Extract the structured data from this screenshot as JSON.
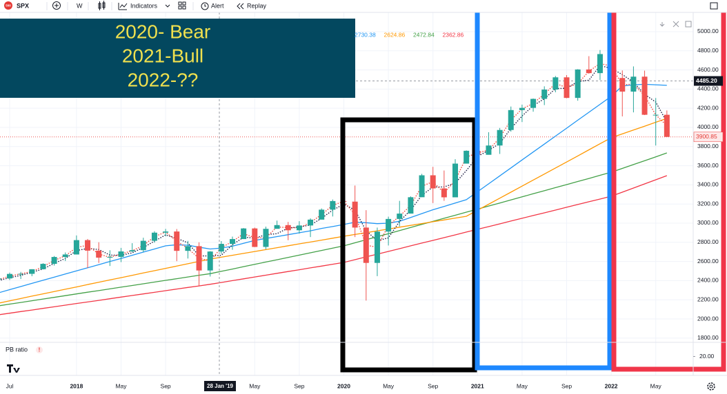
{
  "toolbar": {
    "logo": "500",
    "symbol": "SPX",
    "interval": "W",
    "indicators": "Indicators",
    "alert": "Alert",
    "replay": "Replay"
  },
  "chart_data": {
    "type": "candlestick",
    "annotation": [
      "2020- Bear",
      "2021-Bull",
      "2022-??"
    ],
    "categories": [
      null,
      "Jul",
      null,
      null,
      null,
      null,
      null,
      "2018",
      null,
      null,
      null,
      "May",
      null,
      null,
      null,
      "Sep",
      null,
      null,
      null,
      null,
      null,
      null,
      null,
      "May",
      null,
      null,
      null,
      "Sep",
      null,
      null,
      null,
      "2020",
      null,
      null,
      null,
      "May",
      null,
      null,
      null,
      "Sep",
      null,
      null,
      null,
      "2021",
      null,
      null,
      null,
      "May",
      null,
      null,
      null,
      "Sep",
      null,
      null,
      null,
      "2022",
      null,
      null,
      null,
      "May",
      null
    ],
    "open": [
      2412,
      2423,
      2470,
      2471,
      2519,
      2575,
      2647,
      2673,
      2823,
      2713,
      2640,
      2648,
      2705,
      2718,
      2816,
      2901,
      2913,
      2711,
      2760,
      2506,
      2704,
      2784,
      2834,
      2945,
      2752,
      2941,
      2980,
      2926,
      2976,
      3037,
      3141,
      3231,
      3225,
      2954,
      2585,
      2912,
      3044,
      3100,
      3271,
      3500,
      3363,
      3270,
      3622,
      3756,
      3714,
      3811,
      3973,
      4181,
      4204,
      4298,
      4395,
      4523,
      4308,
      4605,
      4567,
      4766,
      4516,
      4374,
      4530,
      4132,
      4132
    ],
    "high": [
      2454,
      2484,
      2491,
      2519,
      2582,
      2657,
      2694,
      2872,
      2835,
      2801,
      2717,
      2742,
      2791,
      2848,
      2916,
      2940,
      2939,
      2815,
      2800,
      2708,
      2813,
      2860,
      2949,
      2954,
      2964,
      3027,
      3013,
      3021,
      3050,
      3154,
      3247,
      3337,
      3393,
      3136,
      2954,
      3068,
      3233,
      3280,
      3515,
      3588,
      3550,
      3668,
      3760,
      3870,
      3950,
      3994,
      4218,
      4238,
      4302,
      4429,
      4537,
      4546,
      4608,
      4744,
      4808,
      4818,
      4595,
      4637,
      4593,
      4307,
      4177
    ],
    "low": [
      2405,
      2407,
      2417,
      2446,
      2520,
      2557,
      2605,
      2682,
      2532,
      2585,
      2553,
      2594,
      2698,
      2698,
      2796,
      2864,
      2603,
      2631,
      2346,
      2443,
      2681,
      2722,
      2848,
      2750,
      2728,
      2952,
      2822,
      2891,
      2855,
      3050,
      3070,
      3214,
      2855,
      2192,
      2447,
      2767,
      2966,
      3115,
      3284,
      3210,
      3233,
      3280,
      3634,
      3694,
      3725,
      3723,
      3956,
      4056,
      4164,
      4233,
      4367,
      4305,
      4279,
      4561,
      4495,
      4222,
      4115,
      4157,
      4129,
      3811,
      3900
    ],
    "close": [
      2423,
      2470,
      2471,
      2519,
      2575,
      2647,
      2673,
      2823,
      2713,
      2640,
      2648,
      2705,
      2718,
      2816,
      2901,
      2913,
      2711,
      2760,
      2506,
      2704,
      2784,
      2834,
      2945,
      2752,
      2941,
      2980,
      2926,
      2976,
      3037,
      3141,
      3231,
      3225,
      2954,
      2585,
      2912,
      3044,
      3100,
      3271,
      3500,
      3363,
      3270,
      3622,
      3756,
      3714,
      3811,
      3973,
      4181,
      4204,
      4298,
      4395,
      4523,
      4308,
      4605,
      4567,
      4766,
      4516,
      4374,
      4530,
      4132,
      4132,
      3901
    ],
    "up_color": "#26a69a",
    "down_color": "#ef5350",
    "series": [
      {
        "color": "#f23645",
        "style": "solid",
        "crosshair_value": 2362.86,
        "values": [
          2043,
          2060,
          2077,
          2093,
          2110,
          2127,
          2144,
          2161,
          2177,
          2194,
          2211,
          2228,
          2245,
          2261,
          2278,
          2295,
          2312,
          2329,
          2345,
          2362,
          2381,
          2400,
          2419,
          2438,
          2457,
          2476,
          2495,
          2514,
          2533,
          2552,
          2571,
          2590,
          2619,
          2648,
          2676,
          2705,
          2734,
          2763,
          2792,
          2820,
          2849,
          2878,
          2907,
          2936,
          2964,
          2993,
          3022,
          3051,
          3080,
          3108,
          3137,
          3166,
          3195,
          3224,
          3252,
          3281,
          3324,
          3367,
          3410,
          3453,
          3496
        ]
      },
      {
        "color": "#43a047",
        "style": "solid",
        "crosshair_value": 2472.84,
        "values": [
          2137,
          2155,
          2172,
          2190,
          2208,
          2225,
          2243,
          2261,
          2279,
          2296,
          2314,
          2332,
          2349,
          2367,
          2385,
          2403,
          2420,
          2438,
          2456,
          2473,
          2497,
          2521,
          2546,
          2570,
          2594,
          2618,
          2642,
          2666,
          2691,
          2715,
          2739,
          2763,
          2795,
          2827,
          2859,
          2891,
          2923,
          2955,
          2987,
          3019,
          3051,
          3083,
          3115,
          3147,
          3179,
          3211,
          3243,
          3275,
          3307,
          3339,
          3371,
          3403,
          3435,
          3467,
          3500,
          3532,
          3572,
          3612,
          3652,
          3693,
          3734
        ]
      },
      {
        "color": "#ff9800",
        "style": "solid",
        "crosshair_value": 2624.86,
        "values": [
          2165,
          2189,
          2213,
          2238,
          2262,
          2286,
          2310,
          2334,
          2359,
          2383,
          2407,
          2431,
          2455,
          2480,
          2504,
          2528,
          2552,
          2576,
          2601,
          2625,
          2645,
          2665,
          2684,
          2704,
          2724,
          2744,
          2764,
          2784,
          2803,
          2823,
          2843,
          2863,
          2882,
          2901,
          2920,
          2939,
          2958,
          2977,
          2996,
          3015,
          3034,
          3053,
          3072,
          3135,
          3198,
          3261,
          3324,
          3387,
          3450,
          3513,
          3576,
          3639,
          3702,
          3766,
          3829,
          3892,
          3932,
          3973,
          4013,
          4054,
          4094
        ]
      },
      {
        "color": "#2196f3",
        "style": "solid",
        "crosshair_value": 2730.38,
        "values": [
          2273,
          2306,
          2338,
          2371,
          2404,
          2436,
          2469,
          2502,
          2534,
          2567,
          2600,
          2632,
          2665,
          2698,
          2730,
          2763,
          2775,
          2770,
          2750,
          2730,
          2740,
          2760,
          2790,
          2820,
          2840,
          2860,
          2880,
          2900,
          2920,
          2945,
          2965,
          2986,
          3010,
          3005,
          2995,
          3000,
          3020,
          3060,
          3100,
          3140,
          3175,
          3210,
          3245,
          3328,
          3411,
          3494,
          3577,
          3660,
          3743,
          3826,
          3909,
          3992,
          4075,
          4158,
          4241,
          4324,
          4432,
          4445,
          4450,
          4445,
          4439
        ]
      },
      {
        "color": "#1a1a40",
        "style": "dotted",
        "values": [
          2400,
          2430,
          2455,
          2487,
          2522,
          2580,
          2632,
          2714,
          2736,
          2725,
          2667,
          2664,
          2690,
          2746,
          2812,
          2877,
          2842,
          2795,
          2659,
          2657,
          2665,
          2774,
          2854,
          2844,
          2879,
          2891,
          2949,
          2961,
          2980,
          3051,
          3136,
          3199,
          3137,
          2921,
          2817,
          2847,
          3019,
          3138,
          3290,
          3378,
          3378,
          3418,
          3549,
          3697,
          3760,
          3833,
          3988,
          4119,
          4228,
          4299,
          4405,
          4409,
          4479,
          4493,
          4646,
          4616,
          4552,
          4473,
          4345,
          4265,
          4055
        ]
      },
      {
        "color": "#f44336",
        "style": "dotted",
        "values": [
          2410,
          2447,
          2471,
          2495,
          2547,
          2611,
          2660,
          2748,
          2768,
          2677,
          2644,
          2677,
          2712,
          2767,
          2859,
          2907,
          2812,
          2736,
          2633,
          2605,
          2744,
          2809,
          2890,
          2849,
          2847,
          2961,
          2953,
          2951,
          3007,
          3089,
          3186,
          3228,
          3090,
          2770,
          2749,
          2978,
          3072,
          3186,
          3386,
          3432,
          3317,
          3446,
          3689,
          3735,
          3763,
          3892,
          4077,
          4193,
          4251,
          4347,
          4459,
          4416,
          4457,
          4586,
          4667,
          4641,
          4445,
          4452,
          4331,
          4132,
          4017
        ]
      }
    ],
    "ylim": [
      1770,
      5201
    ],
    "yticks": [
      {
        "value": 1800,
        "label": "1800.00"
      },
      {
        "value": 2000,
        "label": "2000.00"
      },
      {
        "value": 2200,
        "label": "2200.00"
      },
      {
        "value": 2400,
        "label": "2400.00"
      },
      {
        "value": 2600,
        "label": "2600.00"
      },
      {
        "value": 2800,
        "label": "2800.00"
      },
      {
        "value": 3000,
        "label": "3000.00"
      },
      {
        "value": 3200,
        "label": "3200.00"
      },
      {
        "value": 3400,
        "label": "3400.00"
      },
      {
        "value": 3600,
        "label": "3600.00"
      },
      {
        "value": 3800,
        "label": "3800.00"
      },
      {
        "value": 4000,
        "label": "4000.00"
      },
      {
        "value": 4200,
        "label": "4200.00"
      },
      {
        "value": 4400,
        "label": "4400.00"
      },
      {
        "value": 4600,
        "label": "4600.00"
      },
      {
        "value": 4800,
        "label": "4800.00"
      },
      {
        "value": 5000,
        "label": "5000.00"
      }
    ],
    "grid": true,
    "marked_price": {
      "value": 4485.2,
      "label": "4485.20"
    },
    "last_price": 3900.85,
    "crosshair_label": "28 Jan '19",
    "pb_pane": {
      "label": "PB ratio",
      "warning": "!",
      "ylim": [
        10,
        30
      ],
      "yticks": [
        {
          "value": 20,
          "label": "20.00"
        }
      ]
    }
  }
}
